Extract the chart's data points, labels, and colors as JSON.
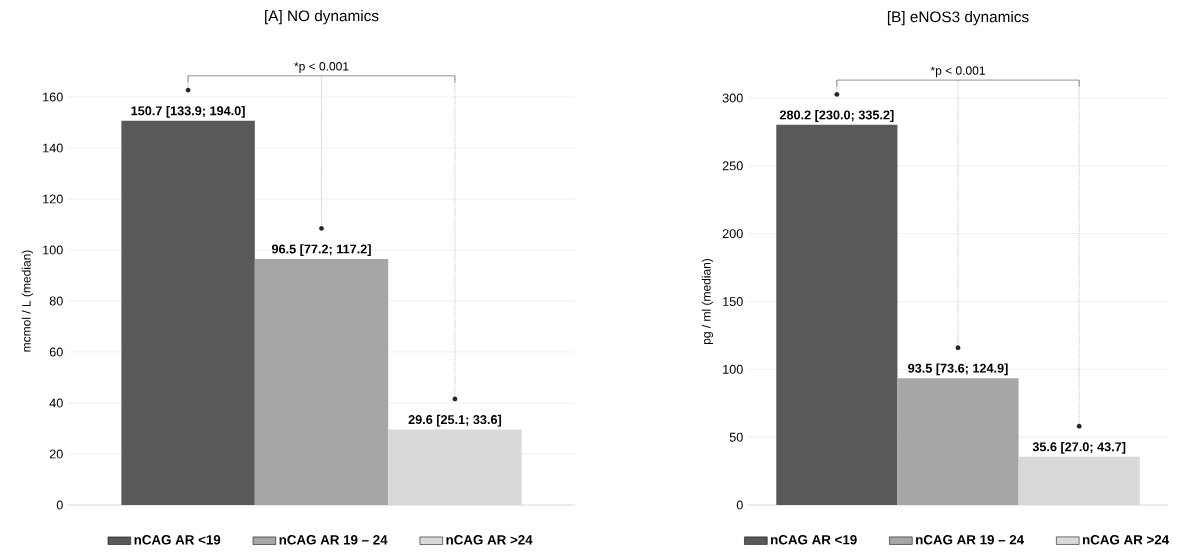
{
  "chart_data": [
    {
      "type": "bar",
      "title": "[A] NO dynamics",
      "ylabel": "mcmol / L (median)",
      "categories": [
        null
      ],
      "series": [
        {
          "name": "nCAG AR <19",
          "color": "#595959",
          "values": [
            150.7
          ],
          "value_labels": [
            "150.7 [133.9; 194.0]"
          ]
        },
        {
          "name": "nCAG AR 19 – 24",
          "color": "#a6a6a6",
          "values": [
            96.5
          ],
          "value_labels": [
            "96.5 [77.2; 117.2]"
          ]
        },
        {
          "name": "nCAG AR >24",
          "color": "#d9d9d9",
          "values": [
            29.6
          ],
          "value_labels": [
            "29.6 [25.1; 33.6]"
          ]
        }
      ],
      "ylim": [
        0,
        160
      ],
      "yticks": [
        0,
        20,
        40,
        60,
        80,
        100,
        120,
        140,
        160
      ],
      "grid": "y",
      "legend": "bottom",
      "tick_labels": "y",
      "annotations": [
        "*p < 0.001"
      ]
    },
    {
      "type": "bar",
      "title": "[B] eNOS3 dynamics",
      "ylabel": "pg / ml (median)",
      "categories": [
        null
      ],
      "series": [
        {
          "name": "nCAG AR <19",
          "color": "#595959",
          "values": [
            280.2
          ],
          "value_labels": [
            "280.2 [230.0; 335.2]"
          ]
        },
        {
          "name": "nCAG AR 19 – 24",
          "color": "#a6a6a6",
          "values": [
            93.5
          ],
          "value_labels": [
            "93.5 [73.6; 124.9]"
          ]
        },
        {
          "name": "nCAG AR >24",
          "color": "#d9d9d9",
          "values": [
            35.6
          ],
          "value_labels": [
            "35.6 [27.0; 43.7]"
          ]
        }
      ],
      "ylim": [
        0,
        300
      ],
      "yticks": [
        0,
        50,
        100,
        150,
        200,
        250,
        300
      ],
      "grid": "y",
      "legend": "bottom",
      "tick_labels": "y",
      "annotations": [
        "*p < 0.001"
      ]
    }
  ]
}
